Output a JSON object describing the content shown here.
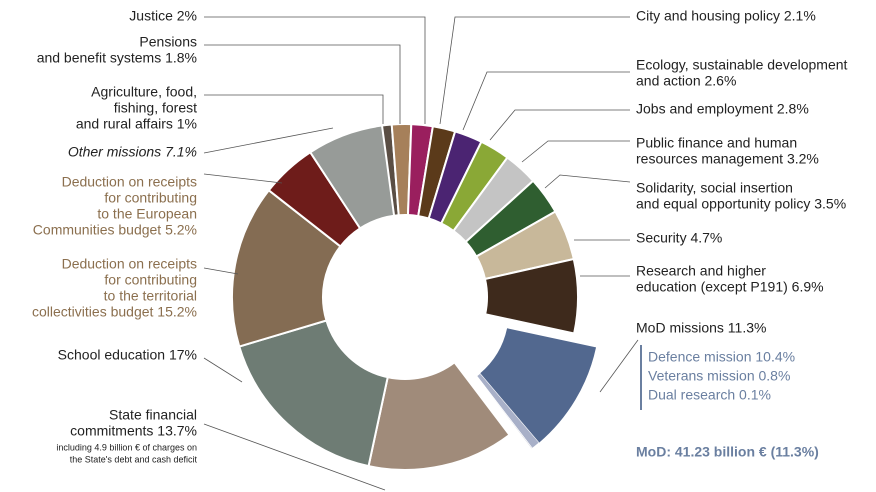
{
  "chart_data": {
    "type": "donut",
    "categories": [
      [
        "Agriculture, food,",
        "fishing, forest",
        "and rural affairs 1%"
      ],
      [
        "Pensions",
        "and benefit systems 1.8%"
      ],
      [
        "Justice 2%"
      ],
      [
        "City and housing policy 2.1%"
      ],
      [
        "Ecology, sustainable development",
        "and action 2.6%"
      ],
      [
        "Jobs and employment 2.8%"
      ],
      [
        "Public finance and human",
        "resources management 3.2%"
      ],
      [
        "Solidarity, social insertion",
        "and equal opportunity policy 3.5%"
      ],
      [
        "Security 4.7%"
      ],
      [
        "Research and higher",
        "education (except P191) 6.9%"
      ],
      [
        "MoD missions 11.3%"
      ],
      [
        "State financial",
        "commitments 13.7%",
        "including 4.9 billion € of charges on",
        "the State's debt and cash deficit"
      ],
      [
        "School education 17%"
      ],
      [
        "Deduction on receipts",
        "for contributing",
        "to the territorial",
        "collectivities budget 15.2%"
      ],
      [
        "Deduction on receipts",
        "for contributing",
        "to the European",
        "Communities budget 5.2%"
      ],
      [
        "Other missions 7.1%"
      ]
    ],
    "values": [
      1,
      1.8,
      2,
      2.1,
      2.6,
      2.8,
      3.2,
      3.5,
      4.7,
      6.9,
      11.3,
      13.7,
      17,
      15.2,
      5.2,
      7.1
    ],
    "colors": [
      "#5a4e44",
      "#a6805a",
      "#9a1f5e",
      "#5b3a1a",
      "#4b2472",
      "#8aa836",
      "#c4c4c4",
      "#2f5e30",
      "#c8b89a",
      "#3e2a1c",
      "#52688f",
      "#a08b7a",
      "#6e7c74",
      "#846c53",
      "#6e1c1a",
      "#979b98"
    ],
    "mod_parts": [
      {
        "name": "Defence mission 10.4%",
        "value": 10.4,
        "color": "#52688f"
      },
      {
        "name": "Veterans mission 0.8%",
        "value": 0.8,
        "color": "#a8b0c8"
      },
      {
        "name": "Dual research 0.1%",
        "value": 0.1,
        "color": "#d4d7df"
      }
    ],
    "annotation": "MoD:  41.23 billion € (11.3%)"
  }
}
